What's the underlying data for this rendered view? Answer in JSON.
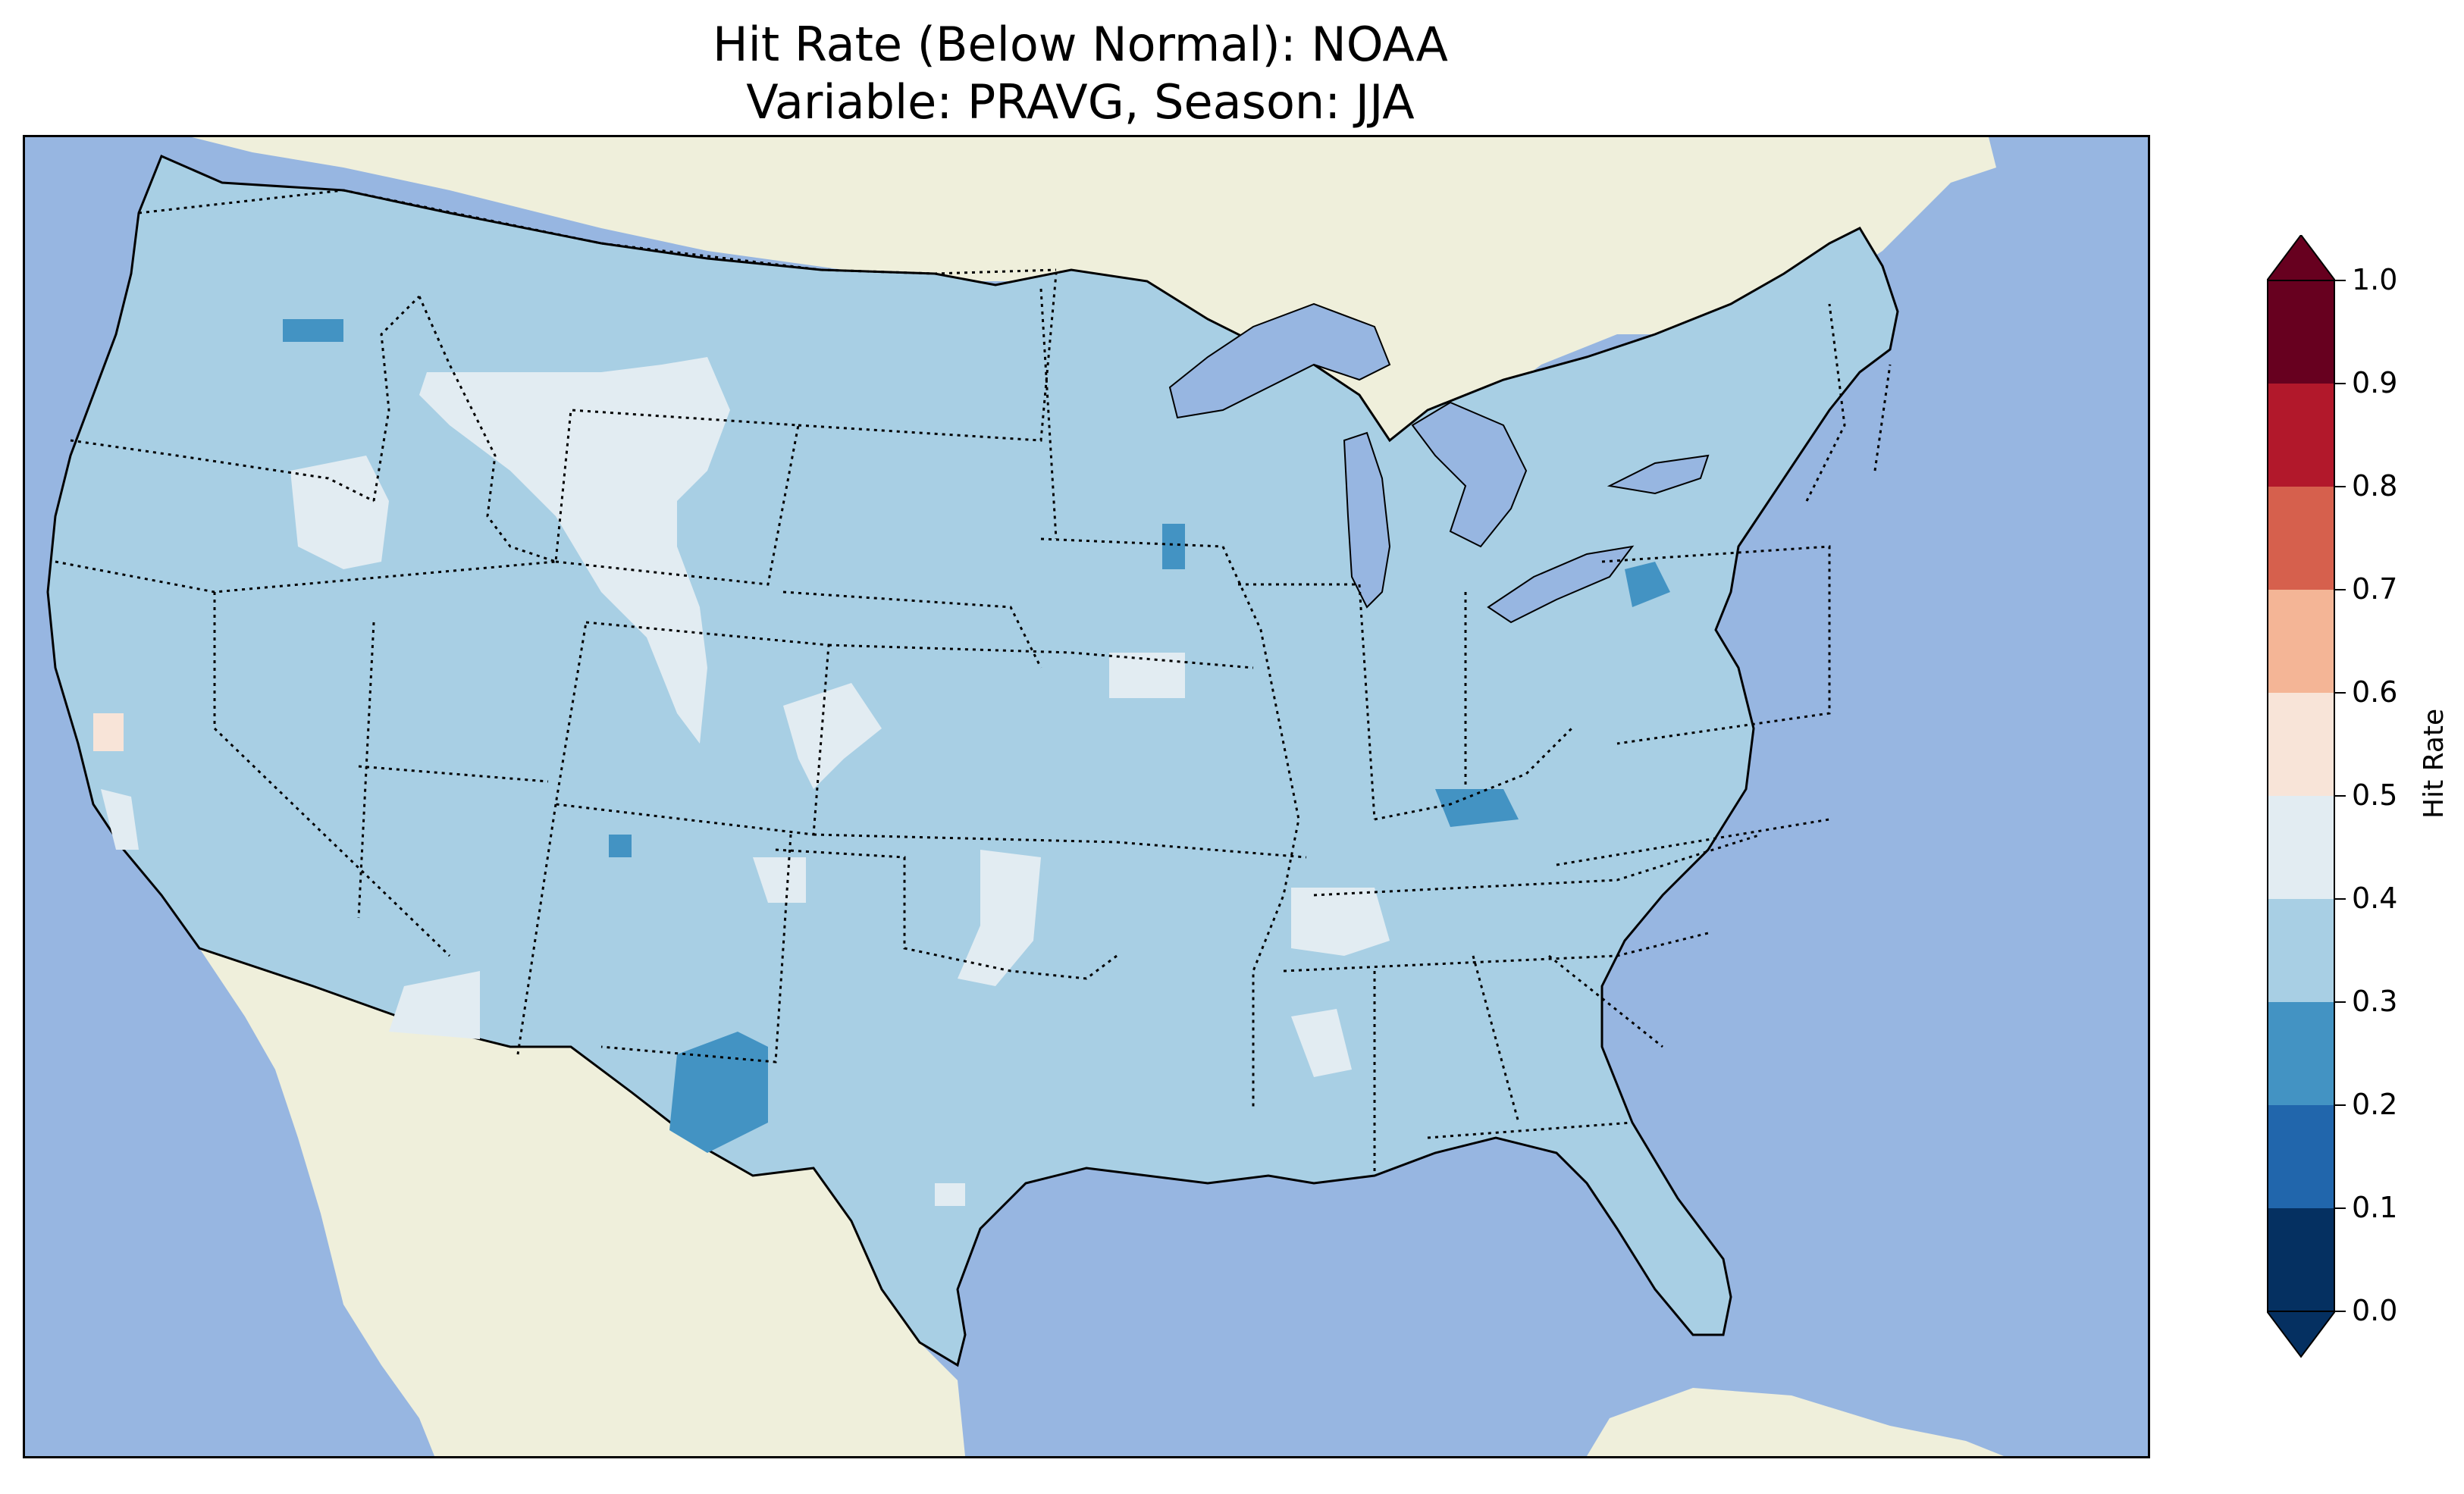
{
  "figure": {
    "title_line1": "Hit Rate (Below Normal): NOAA",
    "title_line2": "Variable: PRAVG, Season: JJA"
  },
  "colors": {
    "ocean": "#97b6e1",
    "land": "#efefdb",
    "lakes": "#97b6e1",
    "bin_0_1": "#053061",
    "bin_1_2": "#2166ac",
    "bin_2_3": "#4393c3",
    "bin_3_4": "#a8cfe4",
    "bin_4_5": "#e2ecf2",
    "bin_5_6": "#f8e4d8",
    "bin_6_7": "#f4b596",
    "bin_7_8": "#d6604d",
    "bin_8_9": "#b2182b",
    "bin_9_10": "#67001f"
  },
  "colorbar": {
    "label": "Hit Rate",
    "ticks": [
      "0.0",
      "0.1",
      "0.2",
      "0.3",
      "0.4",
      "0.5",
      "0.6",
      "0.7",
      "0.8",
      "0.9",
      "1.0"
    ],
    "extend": "both"
  },
  "map_data": {
    "region": "Contiguous United States",
    "variable": "PRAVG",
    "season": "JJA",
    "dominant_bin": "0.3-0.4",
    "areas_0_4_to_0_5": [
      "central Idaho",
      "eastern Montana and central Wyoming",
      "northeastern Colorado",
      "southern Iowa",
      "eastern New Mexico and Texas panhandle",
      "western Tennessee",
      "central Mississippi",
      "southern Arizona",
      "southern California coast"
    ],
    "areas_0_2_to_0_3": [
      "northern Oregon",
      "west Texas",
      "Kentucky",
      "western Pennsylvania",
      "northern Iowa"
    ],
    "areas_0_5_to_0_6": [
      "central California coast"
    ]
  }
}
